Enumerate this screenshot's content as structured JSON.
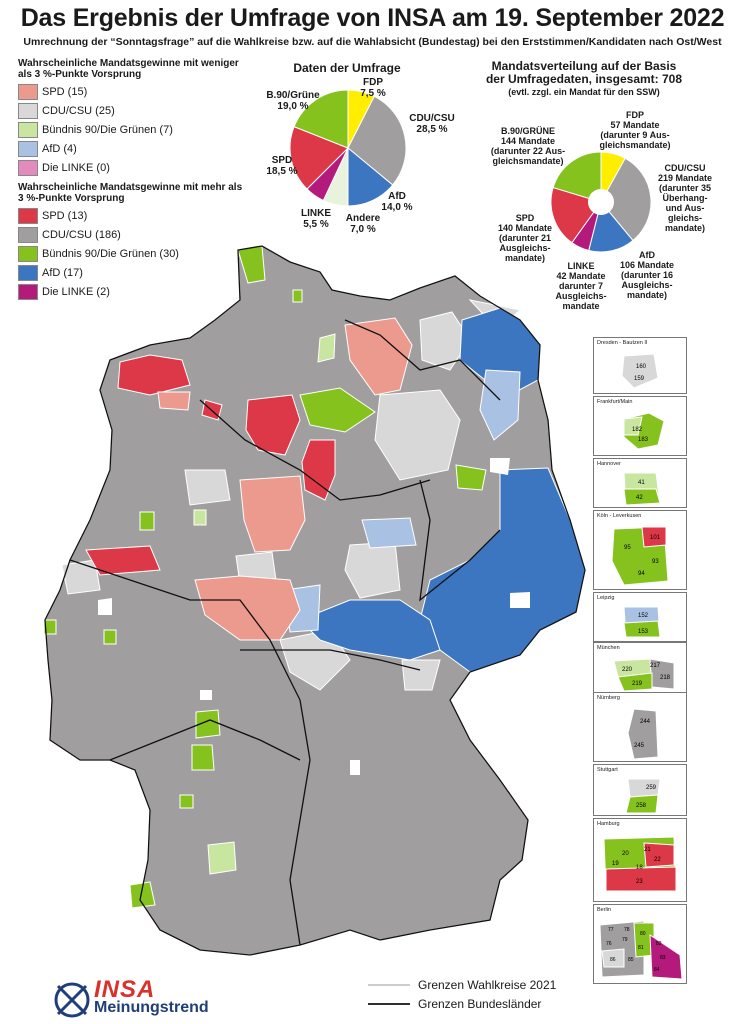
{
  "title": "Das Ergebnis der Umfrage von INSA am 19. September 2022",
  "subtitle": "Umrechnung der “Sonntagsfrage” auf die Wahlkreise bzw. auf die Wahlabsicht (Bundestag) bei den Erststimmen/Kandidaten nach Ost/West",
  "legend": {
    "section1_title": "Wahrscheinliche Mandatsgewinne mit weniger als 3 %-Punkte Vorsprung",
    "section1_items": [
      {
        "label": "SPD (15)",
        "color": "#ec9a8d"
      },
      {
        "label": "CDU/CSU (25)",
        "color": "#d8d8d8"
      },
      {
        "label": "Bündnis 90/Die Grünen (7)",
        "color": "#c8e6a0"
      },
      {
        "label": "AfD (4)",
        "color": "#a9c2e4"
      },
      {
        "label": "Die LINKE (0)",
        "color": "#e38bbd"
      }
    ],
    "section2_title": "Wahrscheinliche Mandatsgewinne mit mehr als 3 %-Punkte Vorsprung",
    "section2_items": [
      {
        "label": "SPD (13)",
        "color": "#dc3847"
      },
      {
        "label": "CDU/CSU (186)",
        "color": "#a09e9f"
      },
      {
        "label": "Bündnis 90/Die Grünen (30)",
        "color": "#86c21e"
      },
      {
        "label": "AfD (17)",
        "color": "#3d76c0"
      },
      {
        "label": "Die LINKE (2)",
        "color": "#b4197c"
      }
    ]
  },
  "survey_pie": {
    "title": "Daten der Umfrage",
    "labels": {
      "fdp_name": "FDP",
      "fdp_value": "7,5 %",
      "cdu_name": "CDU/CSU",
      "cdu_value": "28,5 %",
      "afd_name": "AfD",
      "afd_value": "14,0 %",
      "andere_name": "Andere",
      "andere_value": "7,0 %",
      "linke_name": "LINKE",
      "linke_value": "5,5 %",
      "spd_name": "SPD",
      "spd_value": "18,5 %",
      "gruene_name": "B.90/Grüne",
      "gruene_value": "19,0 %"
    }
  },
  "seats_pie": {
    "title_line1": "Mandatsverteilung auf der Basis",
    "title_line2": "der Umfragedaten, insgesamt: 708",
    "title_line3": "(evtl. zzgl. ein Mandat für den SSW)",
    "labels": {
      "fdp": [
        "FDP",
        "57 Mandate",
        "(darunter 9 Aus-",
        "gleichsmandate)"
      ],
      "cdu": [
        "CDU/CSU",
        "219 Mandate",
        "(darunter 35",
        "Überhang-",
        "und Aus-",
        "gleichs-",
        "mandate)"
      ],
      "afd": [
        "AfD",
        "106 Mandate",
        "(darunter 16",
        "Ausgleichs-",
        "mandate)"
      ],
      "linke": [
        "LINKE",
        "42 Mandate",
        "darunter 7",
        "Ausgleichs-",
        "mandate"
      ],
      "spd": [
        "SPD",
        "140 Mandate",
        "(darunter 21",
        "Ausgleichs-",
        "mandate)"
      ],
      "gruene": [
        "B.90/GRÜNE",
        "144 Mandate",
        "(darunter 22 Aus-",
        "gleichsmandate)"
      ]
    }
  },
  "chart_data": [
    {
      "type": "pie",
      "title": "Daten der Umfrage",
      "categories": [
        "FDP",
        "CDU/CSU",
        "AfD",
        "Andere",
        "LINKE",
        "SPD",
        "B.90/Grüne"
      ],
      "values": [
        7.5,
        28.5,
        14.0,
        7.0,
        5.5,
        18.5,
        19.0
      ],
      "colors": [
        "#ffee00",
        "#a09e9f",
        "#3d76c0",
        "#e8f2dc",
        "#b4197c",
        "#dc3847",
        "#86c21e"
      ]
    },
    {
      "type": "pie",
      "title": "Mandatsverteilung auf der Basis der Umfragedaten, insgesamt: 708",
      "categories": [
        "FDP",
        "CDU/CSU",
        "AfD",
        "LINKE",
        "SPD",
        "B.90/GRÜNE"
      ],
      "values": [
        57,
        219,
        106,
        42,
        140,
        144
      ],
      "colors": [
        "#ffee00",
        "#a09e9f",
        "#3d76c0",
        "#b4197c",
        "#dc3847",
        "#86c21e"
      ]
    }
  ],
  "cities": [
    {
      "name": "Dresden - Bautzen II",
      "numbers": [
        "160",
        "159"
      ]
    },
    {
      "name": "Frankfurt/Main",
      "numbers": [
        "182",
        "183"
      ]
    },
    {
      "name": "Hannover",
      "numbers": [
        "41",
        "42"
      ]
    },
    {
      "name": "Köln - Leverkusen",
      "numbers": [
        "95",
        "101",
        "93",
        "94"
      ]
    },
    {
      "name": "Leipzig",
      "numbers": [
        "152",
        "153"
      ]
    },
    {
      "name": "München",
      "numbers": [
        "217",
        "220",
        "218",
        "219"
      ]
    },
    {
      "name": "Nürnberg",
      "numbers": [
        "244",
        "245"
      ]
    },
    {
      "name": "Stuttgart",
      "numbers": [
        "259",
        "258"
      ]
    },
    {
      "name": "Hamburg",
      "numbers": [
        "21",
        "20",
        "22",
        "19",
        "18",
        "23"
      ]
    },
    {
      "name": "Berlin",
      "numbers": [
        "77",
        "76",
        "78",
        "79",
        "80",
        "81",
        "82",
        "83",
        "84",
        "85",
        "86"
      ]
    }
  ],
  "footer": {
    "boundary_wahlkreise": "Grenzen Wahlkreise 2021",
    "boundary_laender": "Grenzen Bundesländer",
    "logo_word1": "INSA",
    "logo_word2": "Meinungstrend"
  },
  "colors": {
    "cdu_strong": "#a09e9f",
    "cdu_weak": "#d8d8d8",
    "spd_strong": "#dc3847",
    "spd_weak": "#ec9a8d",
    "gruene_strong": "#86c21e",
    "gruene_weak": "#c8e6a0",
    "afd_strong": "#3d76c0",
    "afd_weak": "#a9c2e4",
    "linke_strong": "#b4197c",
    "fdp": "#ffee00"
  }
}
